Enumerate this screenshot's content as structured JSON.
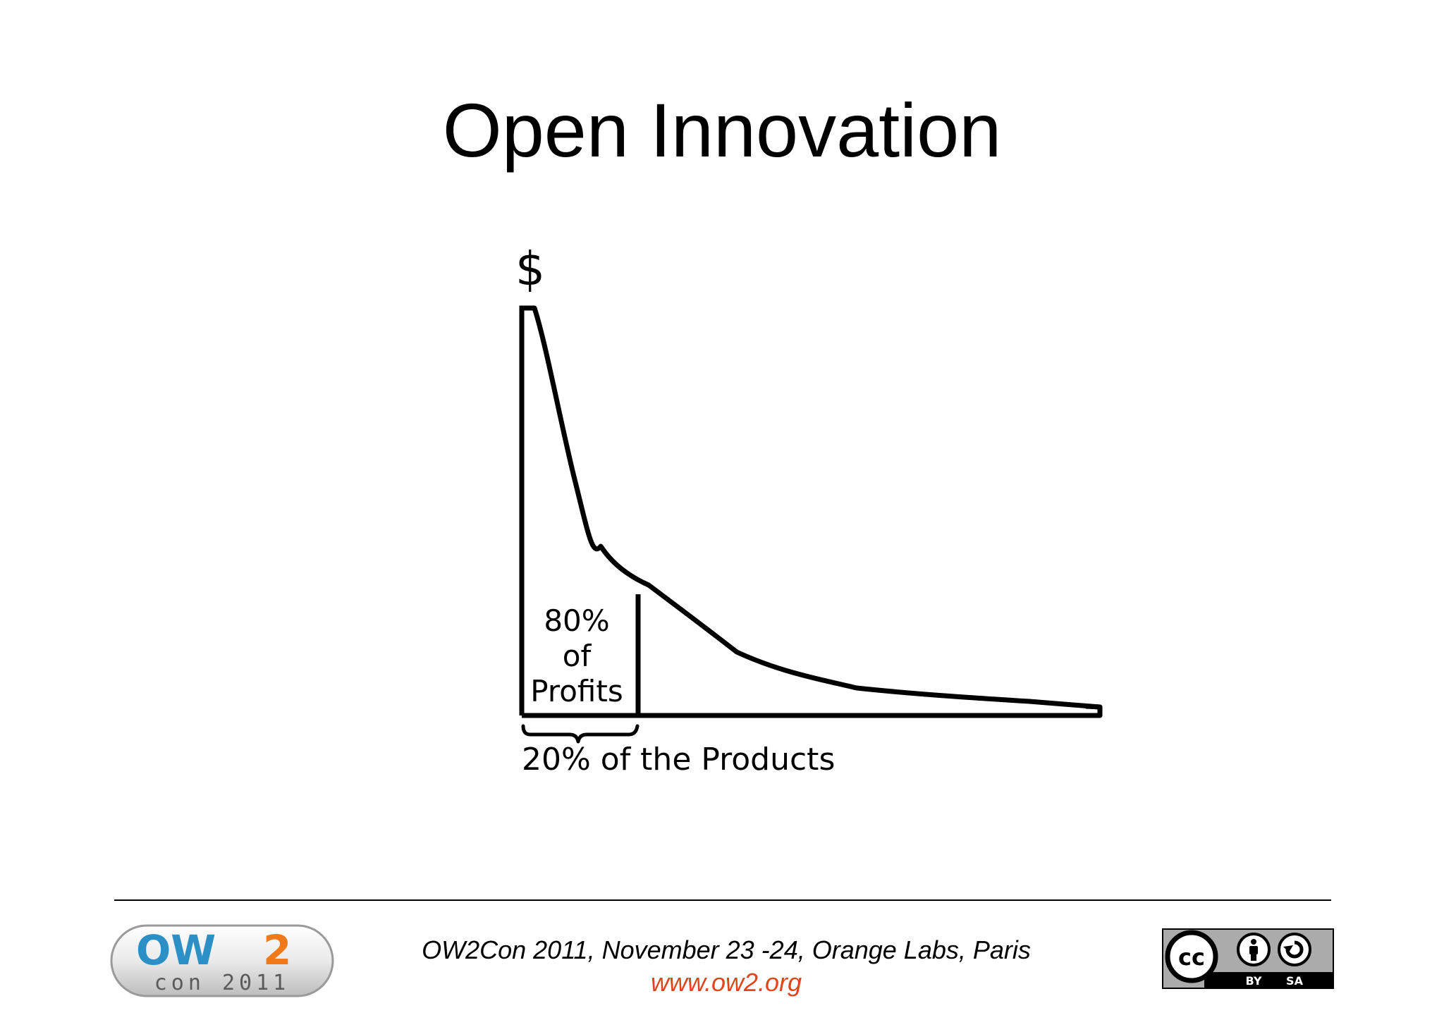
{
  "slide": {
    "title": "Open Innovation"
  },
  "diagram": {
    "y_axis_symbol": "$",
    "region_label_lines": [
      "80%",
      "of",
      "Profits"
    ],
    "bracket_label": "20% of the Products"
  },
  "footer": {
    "event": "OW2Con 2011, November 23 -24, Orange Labs,  Paris",
    "url": "www.ow2.org",
    "logo": {
      "text_main_left": "OW",
      "text_main_right": "2",
      "text_sub": "con 2011"
    },
    "license": {
      "cc": "cc",
      "by": "BY",
      "sa": "SA"
    }
  },
  "colors": {
    "url": "#e0451b",
    "logo_blue": "#2c8fc6",
    "logo_orange": "#f07a1a",
    "logo_gray": "#6b6b6b"
  }
}
